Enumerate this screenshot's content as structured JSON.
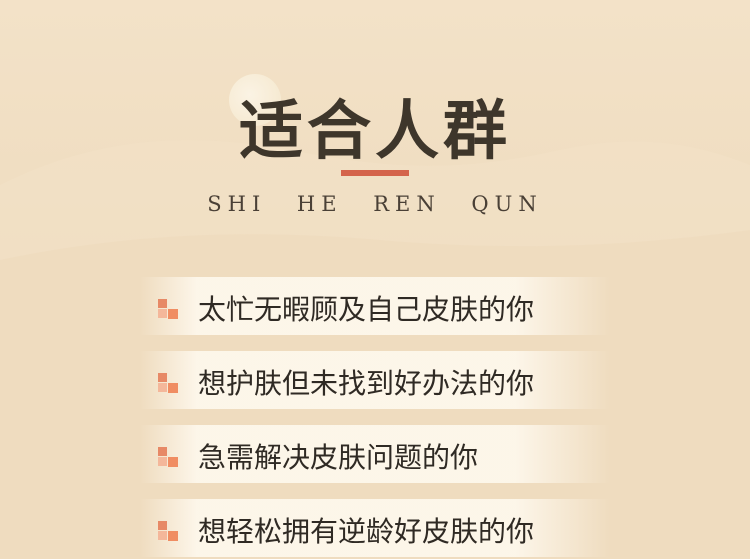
{
  "section": {
    "title": "适合人群",
    "pinyin": "SHI  HE  REN  QUN"
  },
  "items": [
    {
      "text": "太忙无暇顾及自己皮肤的你"
    },
    {
      "text": "想护肤但未找到好办法的你"
    },
    {
      "text": "急需解决皮肤问题的你"
    },
    {
      "text": "想轻松拥有逆龄好皮肤的你"
    }
  ],
  "colors": {
    "background": "#efdcbf",
    "accent": "#d4644b",
    "bullet": "#f08d62",
    "text": "#2f2a24"
  }
}
